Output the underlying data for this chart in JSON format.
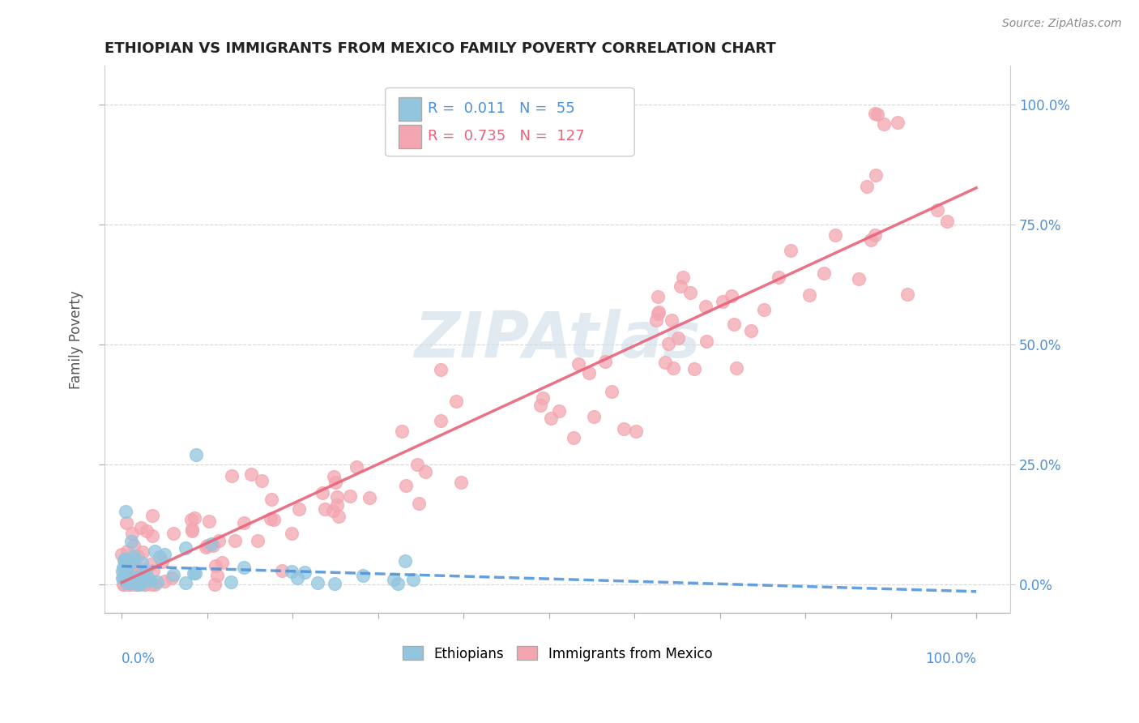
{
  "title": "ETHIOPIAN VS IMMIGRANTS FROM MEXICO FAMILY POVERTY CORRELATION CHART",
  "source": "Source: ZipAtlas.com",
  "ylabel": "Family Poverty",
  "blue_color": "#92C5DE",
  "pink_color": "#F4A6B0",
  "blue_line_color": "#4A90D9",
  "pink_line_color": "#E8637A",
  "watermark_color": "#D0DCE8",
  "background_color": "#FFFFFF",
  "legend_text_blue": "R =  0.011   N =  55",
  "legend_text_pink": "R =  0.735   N =  127"
}
